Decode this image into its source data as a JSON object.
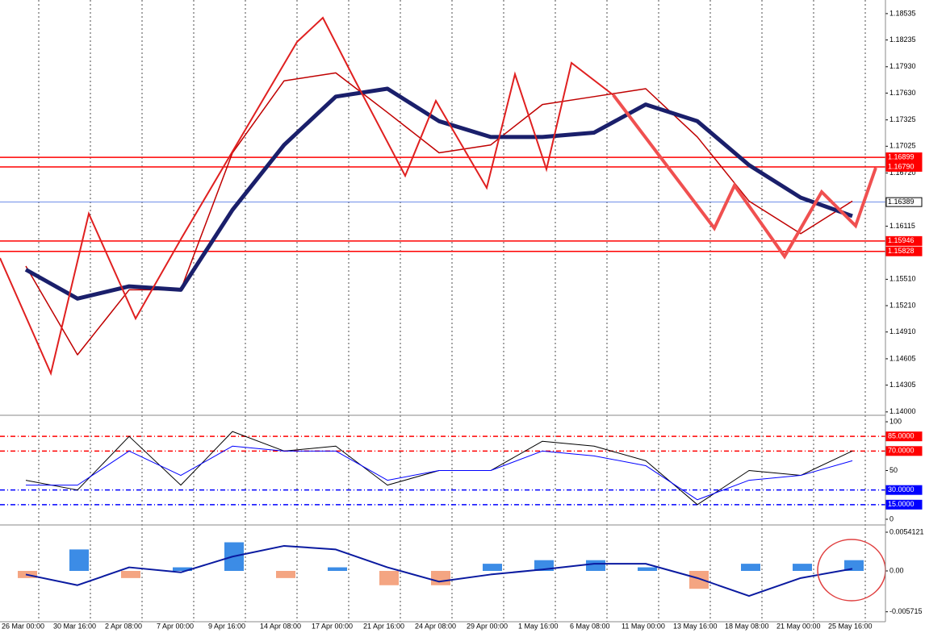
{
  "chart_data": [
    {
      "type": "line",
      "ylim": [
        1.1398,
        1.1869
      ],
      "yticks": [
        1.18535,
        1.18235,
        {
          "value": 1.1793,
          "label": "1.17930"
        },
        {
          "value": 1.1763,
          "label": "1.17630"
        },
        1.17325,
        1.17025,
        {
          "value": 1.1672,
          "label": "1.16720"
        },
        1.16115,
        {
          "value": 1.1551,
          "label": "1.15510"
        },
        {
          "value": 1.1521,
          "label": "1.15210"
        },
        {
          "value": 1.1491,
          "label": "1.14910"
        },
        1.14605,
        1.14305,
        {
          "value": 1.14,
          "label": "1.14000"
        }
      ],
      "levels": [
        {
          "value": 1.16899,
          "label": "1.16899",
          "color": "#ff0000"
        },
        {
          "value": 1.1679,
          "label": "1.16790",
          "color": "#ff0000"
        },
        {
          "value": 1.16389,
          "label": "1.16389",
          "color": "#4169e1"
        },
        {
          "value": 1.15946,
          "label": "1.15946",
          "color": "#ff0000"
        },
        {
          "value": 1.15828,
          "label": "1.15828",
          "color": "#ff0000"
        }
      ],
      "series": [
        {
          "color": "#c00000",
          "width": 1.5,
          "values": [
            1.1566,
            1.1465,
            1.1539,
            1.1539,
            1.1695,
            1.1777,
            1.1786,
            1.1741,
            1.1695,
            1.1704,
            1.175,
            1.1759,
            1.1768,
            1.1713,
            1.164,
            1.1603,
            1.164
          ]
        },
        {
          "color": "#1a1f6b",
          "width": 5,
          "values": [
            1.1562,
            1.1529,
            1.1543,
            1.1539,
            1.163,
            1.1704,
            1.1759,
            1.1768,
            1.1731,
            1.1713,
            1.1713,
            1.1718,
            1.175,
            1.1731,
            1.1681,
            1.1644,
            1.1623
          ]
        }
      ]
    },
    {
      "type": "line",
      "ylim": [
        -5,
        105
      ],
      "yticks": [
        100,
        50,
        0
      ],
      "levels": [
        {
          "value": 85,
          "label": "85.0000",
          "color": "#ff0000"
        },
        {
          "value": 70,
          "label": "70.0000",
          "color": "#ff0000"
        },
        {
          "value": 30,
          "label": "30.0000",
          "color": "#0000ff"
        },
        {
          "value": 15,
          "label": "15.0000",
          "color": "#0000ff"
        }
      ],
      "series": [
        {
          "color": "#000000",
          "width": 1,
          "values": [
            40,
            30,
            85,
            35,
            90,
            70,
            75,
            35,
            50,
            50,
            80,
            75,
            60,
            15,
            50,
            45,
            70
          ]
        },
        {
          "color": "#0000ff",
          "width": 1,
          "values": [
            35,
            35,
            70,
            45,
            75,
            70,
            70,
            40,
            50,
            50,
            70,
            65,
            55,
            20,
            40,
            45,
            60
          ]
        }
      ]
    },
    {
      "type": "bar",
      "ylim": [
        -0.00699,
        0.0062
      ],
      "yticks": [
        0.0054121,
        {
          "value": 0,
          "label": "0.00"
        },
        {
          "value": -0.005715,
          "label": "-0.005715"
        }
      ],
      "categories": [
        "26 Mar 00:00",
        "30 Mar 16:00",
        "2 Apr 08:00",
        "7 Apr 00:00",
        "9 Apr 16:00",
        "14 Apr 08:00",
        "17 Apr 00:00",
        "21 Apr 16:00",
        "24 Apr 08:00",
        "29 Apr 00:00",
        "1 May 16:00",
        "6 May 08:00",
        "11 May 00:00",
        "13 May 16:00",
        "18 May 08:00",
        "21 May 00:00",
        "25 May 16:00"
      ],
      "series": [
        {
          "color": "#3c8ce6",
          "negative_color": "#f4a582",
          "values": [
            -0.001,
            0.003,
            -0.001,
            0.0005,
            0.004,
            -0.001,
            0.0005,
            -0.002,
            -0.002,
            0.001,
            0.0015,
            0.0015,
            0.0005,
            -0.0025,
            0.001,
            0.001,
            0.0015
          ]
        },
        {
          "type": "line",
          "color": "#0a1aa0",
          "width": 2,
          "values": [
            -0.0005,
            -0.002,
            0.0005,
            -0.0002,
            0.002,
            0.0035,
            0.003,
            0.0005,
            -0.0015,
            -0.0005,
            0.0002,
            0.001,
            0.001,
            -0.001,
            -0.0035,
            -0.001,
            0.0003
          ]
        }
      ]
    }
  ]
}
